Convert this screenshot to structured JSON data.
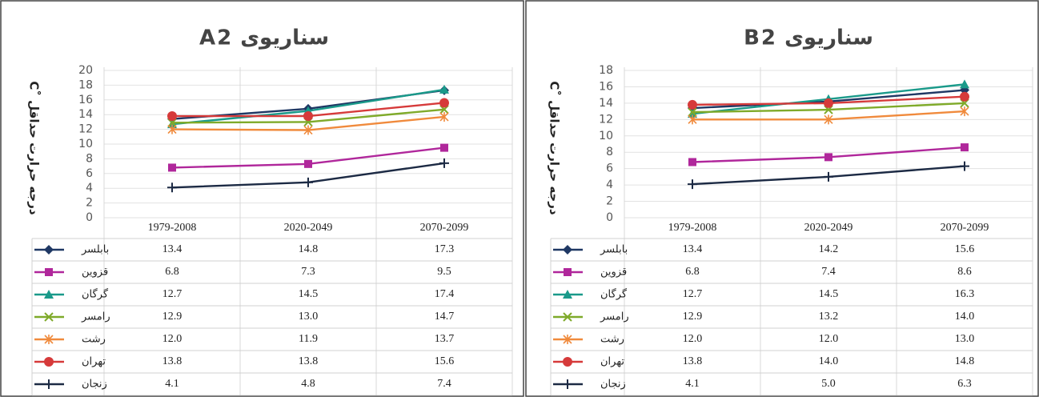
{
  "chart_data": [
    {
      "type": "line",
      "title": "سناریوی A2",
      "y_label": "درجه حرارت حداقل ˚C",
      "categories": [
        "1979-2008",
        "2020-2049",
        "2070-2099"
      ],
      "ylim": [
        0,
        20
      ],
      "yticks": [
        0,
        2,
        4,
        6,
        8,
        10,
        12,
        14,
        16,
        18,
        20
      ],
      "grid": true,
      "series": [
        {
          "name": "بابلسر",
          "color": "#1f3864",
          "marker": "diamond",
          "values": [
            13.4,
            14.8,
            17.3
          ],
          "value_labels": [
            "13.4",
            "14.8",
            "17.3"
          ]
        },
        {
          "name": "قزوین",
          "color": "#b0279b",
          "marker": "square",
          "values": [
            6.8,
            7.3,
            9.5
          ],
          "value_labels": [
            "6.8",
            "7.3",
            "9.5"
          ]
        },
        {
          "name": "گرگان",
          "color": "#1a9a8a",
          "marker": "triangle",
          "values": [
            12.7,
            14.5,
            17.4
          ],
          "value_labels": [
            "12.7",
            "14.5",
            "17.4"
          ]
        },
        {
          "name": "رامسر",
          "color": "#7faa2a",
          "marker": "x",
          "values": [
            12.9,
            13.0,
            14.7
          ],
          "value_labels": [
            "12.9",
            "13.0",
            "14.7"
          ]
        },
        {
          "name": "رشت",
          "color": "#f08a3c",
          "marker": "star",
          "values": [
            12.0,
            11.9,
            13.7
          ],
          "value_labels": [
            "12.0",
            "11.9",
            "13.7"
          ]
        },
        {
          "name": "تهران",
          "color": "#d63a3a",
          "marker": "circle",
          "values": [
            13.8,
            13.8,
            15.6
          ],
          "value_labels": [
            "13.8",
            "13.8",
            "15.6"
          ]
        },
        {
          "name": "زنجان",
          "color": "#1c2a44",
          "marker": "plus",
          "values": [
            4.1,
            4.8,
            7.4
          ],
          "value_labels": [
            "4.1",
            "4.8",
            "7.4"
          ]
        }
      ]
    },
    {
      "type": "line",
      "title": "سناریوی B2",
      "y_label": "درجه حرارت حداقل ˚C",
      "categories": [
        "1979-2008",
        "2020-2049",
        "2070-2099"
      ],
      "ylim": [
        0,
        18
      ],
      "yticks": [
        0,
        2,
        4,
        6,
        8,
        10,
        12,
        14,
        16,
        18
      ],
      "grid": true,
      "series": [
        {
          "name": "بابلسر",
          "color": "#1f3864",
          "marker": "diamond",
          "values": [
            13.4,
            14.2,
            15.6
          ],
          "value_labels": [
            "13.4",
            "14.2",
            "15.6"
          ]
        },
        {
          "name": "قزوین",
          "color": "#b0279b",
          "marker": "square",
          "values": [
            6.8,
            7.4,
            8.6
          ],
          "value_labels": [
            "6.8",
            "7.4",
            "8.6"
          ]
        },
        {
          "name": "گرگان",
          "color": "#1a9a8a",
          "marker": "triangle",
          "values": [
            12.7,
            14.5,
            16.3
          ],
          "value_labels": [
            "12.7",
            "14.5",
            "16.3"
          ]
        },
        {
          "name": "رامسر",
          "color": "#7faa2a",
          "marker": "x",
          "values": [
            12.9,
            13.2,
            14.0
          ],
          "value_labels": [
            "12.9",
            "13.2",
            "14.0"
          ]
        },
        {
          "name": "رشت",
          "color": "#f08a3c",
          "marker": "star",
          "values": [
            12.0,
            12.0,
            13.0
          ],
          "value_labels": [
            "12.0",
            "12.0",
            "13.0"
          ]
        },
        {
          "name": "تهران",
          "color": "#d63a3a",
          "marker": "circle",
          "values": [
            13.8,
            14.0,
            14.8
          ],
          "value_labels": [
            "13.8",
            "14.0",
            "14.8"
          ]
        },
        {
          "name": "زنجان",
          "color": "#1c2a44",
          "marker": "plus",
          "values": [
            4.1,
            5.0,
            6.3
          ],
          "value_labels": [
            "4.1",
            "5.0",
            "6.3"
          ]
        }
      ]
    }
  ]
}
